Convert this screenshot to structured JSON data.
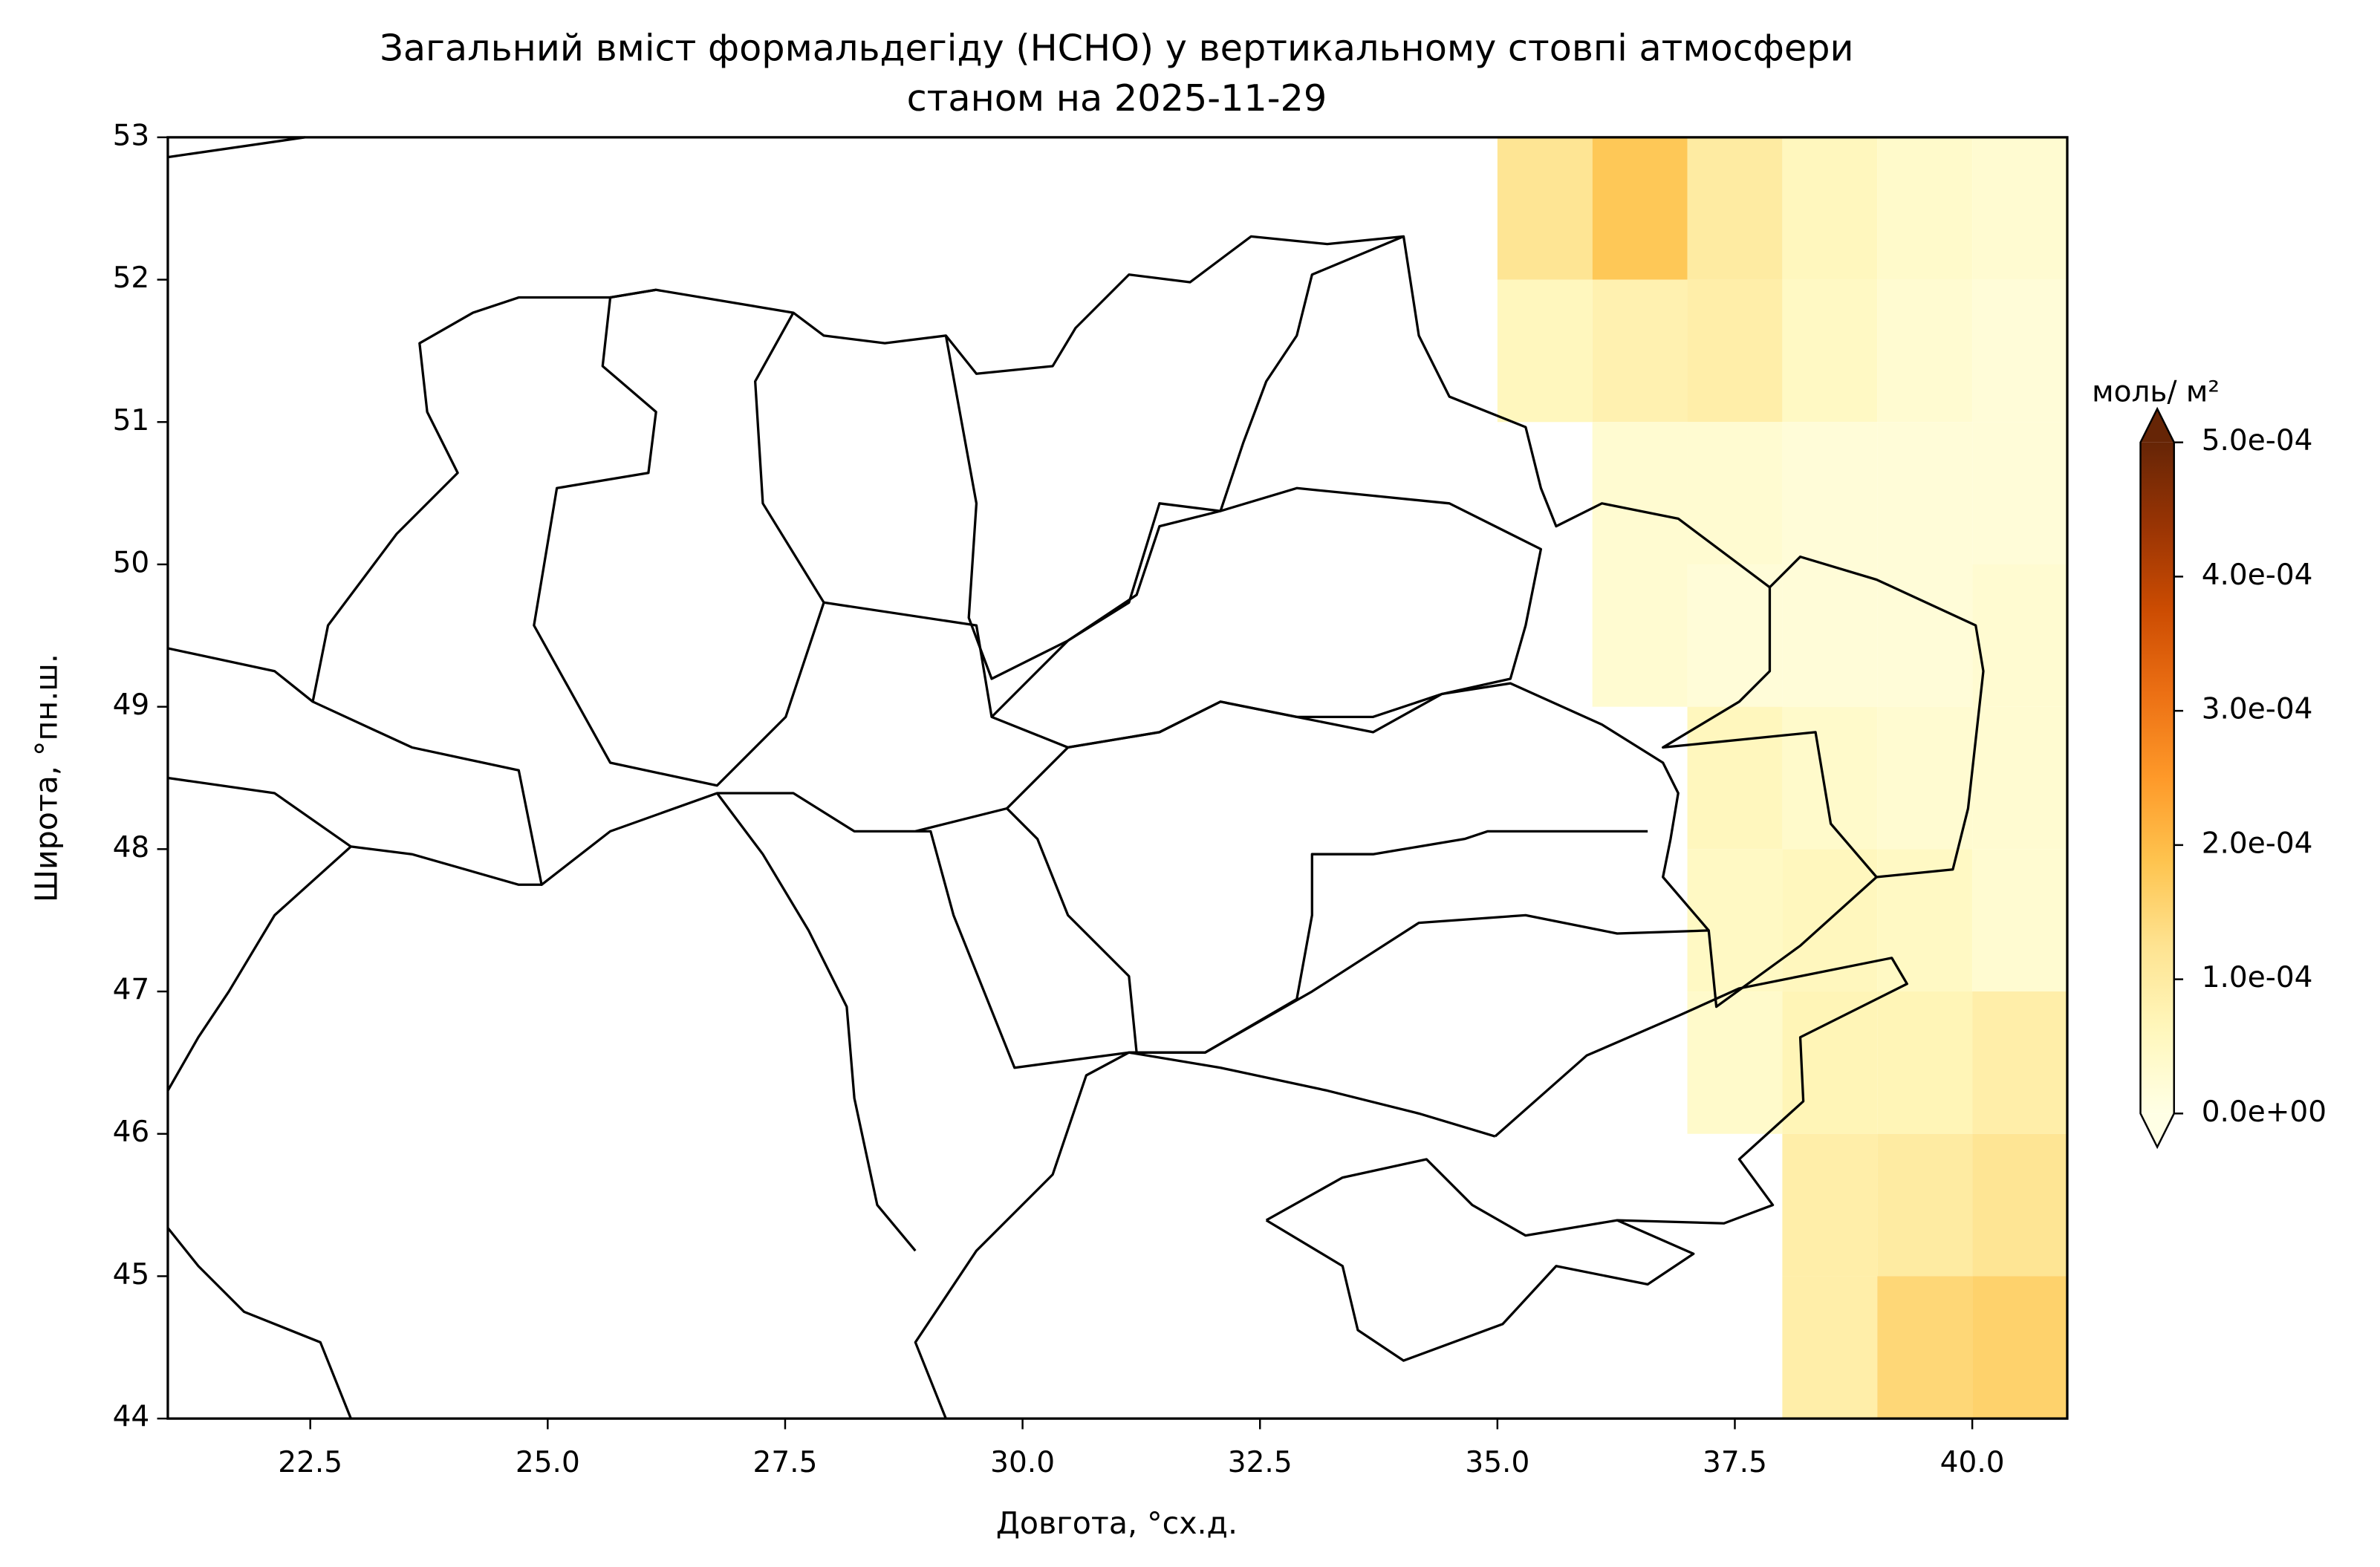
{
  "chart_data": {
    "type": "map",
    "title": "Загальний вміст формальдегіду (HCHO) у вертикальному стовпі атмосфери",
    "subtitle": "станом на 2025-11-29",
    "x_label": "Довгота, °сх.д.",
    "y_label": "Широта, °пн.ш.",
    "xlim": [
      21,
      41
    ],
    "ylim": [
      44,
      53
    ],
    "xticks": [
      22.5,
      {
        "value": 25,
        "label": "25.0"
      },
      27.5,
      {
        "value": 30,
        "label": "30.0"
      },
      32.5,
      {
        "value": 35,
        "label": "35.0"
      },
      37.5,
      {
        "value": 40,
        "label": "40.0"
      }
    ],
    "yticks": [
      44,
      45,
      46,
      47,
      48,
      49,
      50,
      51,
      52,
      53
    ],
    "colormap": "YlOrBr",
    "colorbar_label": "моль/ м²",
    "clim": [
      0,
      0.0005
    ],
    "colorbar_ticks": [
      {
        "value": 0,
        "label": "0.0e+00"
      },
      {
        "value": 0.0001,
        "label": "1.0e-04"
      },
      {
        "value": 0.0002,
        "label": "2.0e-04"
      },
      {
        "value": 0.0003,
        "label": "3.0e-04"
      },
      {
        "value": 0.0004,
        "label": "4.0e-04"
      },
      {
        "value": 0.0005,
        "label": "5.0e-04"
      }
    ],
    "field": {
      "lon": [
        35.5,
        36.5,
        37.5,
        38.5,
        39.5,
        40.5
      ],
      "lat": [
        52.5,
        51.5,
        50.5,
        49.5,
        48.5,
        47.5,
        46.5,
        45.5,
        44.5
      ],
      "values": [
        [
          0.00012,
          0.00018,
          0.0001,
          6e-05,
          4e-05,
          3e-05
        ],
        [
          6e-05,
          8e-05,
          9e-05,
          5e-05,
          3e-05,
          2e-05
        ],
        [
          null,
          3e-05,
          3e-05,
          2e-05,
          2e-05,
          2e-05
        ],
        [
          null,
          3e-05,
          2e-05,
          2e-05,
          2e-05,
          3e-05
        ],
        [
          null,
          null,
          6e-05,
          4e-05,
          3e-05,
          3e-05
        ],
        [
          null,
          null,
          5e-05,
          6e-05,
          5e-05,
          3e-05
        ],
        [
          null,
          null,
          4e-05,
          7e-05,
          7e-05,
          9e-05
        ],
        [
          null,
          null,
          null,
          9e-05,
          0.0001,
          0.00012
        ],
        [
          null,
          null,
          null,
          9e-05,
          0.00015,
          0.00016
        ]
      ]
    }
  }
}
